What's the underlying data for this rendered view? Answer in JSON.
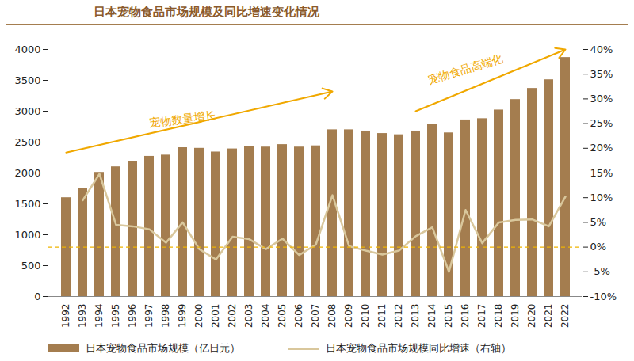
{
  "chart_data": {
    "type": "bar",
    "title": "日本宠物食品市场规模及同比增速变化情况",
    "categories": [
      "1992",
      "1993",
      "1994",
      "1995",
      "1996",
      "1997",
      "1998",
      "1999",
      "2000",
      "2001",
      "2002",
      "2003",
      "2004",
      "2005",
      "2006",
      "2007",
      "2008",
      "2009",
      "2010",
      "2011",
      "2012",
      "2013",
      "2014",
      "2015",
      "2016",
      "2017",
      "2018",
      "2019",
      "2020",
      "2021",
      "2022"
    ],
    "series": [
      {
        "name": "日本宠物食品市场规模（亿日元）",
        "type": "bar",
        "color": "#a47d4f",
        "values": [
          1600,
          1750,
          2010,
          2100,
          2190,
          2270,
          2290,
          2410,
          2400,
          2340,
          2390,
          2430,
          2420,
          2460,
          2420,
          2440,
          2700,
          2700,
          2680,
          2640,
          2620,
          2680,
          2790,
          2650,
          2860,
          2880,
          3020,
          3190,
          3370,
          3510,
          3870
        ]
      },
      {
        "name": "日本宠物食品市场规模同比增速（右轴）",
        "type": "line",
        "axis": "y2",
        "color": "#d9c79c",
        "values": [
          null,
          9.5,
          14.8,
          4.5,
          4.2,
          3.6,
          0.9,
          5.0,
          -0.4,
          -2.5,
          2.1,
          1.6,
          -0.4,
          1.7,
          -1.6,
          0.5,
          10.5,
          0.2,
          -0.7,
          -1.5,
          -0.7,
          2.2,
          4.0,
          -5.0,
          7.5,
          0.8,
          5.0,
          5.5,
          5.6,
          4.2,
          10.2
        ]
      }
    ],
    "ylim": [
      0,
      4000
    ],
    "yticks": [
      0,
      500,
      1000,
      1500,
      2000,
      2500,
      3000,
      3500,
      4000
    ],
    "y2lim": [
      -10,
      40
    ],
    "y2ticks": [
      {
        "value": -10,
        "label": "-10%"
      },
      {
        "value": -5,
        "label": "-5%"
      },
      {
        "value": 0,
        "label": "0%"
      },
      {
        "value": 5,
        "label": "5%"
      },
      {
        "value": 10,
        "label": "10%"
      },
      {
        "value": 15,
        "label": "15%"
      },
      {
        "value": 20,
        "label": "20%"
      },
      {
        "value": 25,
        "label": "25%"
      },
      {
        "value": 30,
        "label": "30%"
      },
      {
        "value": 35,
        "label": "35%"
      },
      {
        "value": 40,
        "label": "40%"
      }
    ],
    "reference_lines": [
      {
        "axis": "y2",
        "value": 0,
        "color": "#f0b400",
        "line_style": "dashed"
      }
    ],
    "annotations": [
      {
        "text": "宠物数量增长",
        "color": "#f0a800"
      },
      {
        "text": "宠物食品高端化",
        "color": "#f0a800"
      }
    ],
    "grid": false,
    "legend": "bottom"
  }
}
